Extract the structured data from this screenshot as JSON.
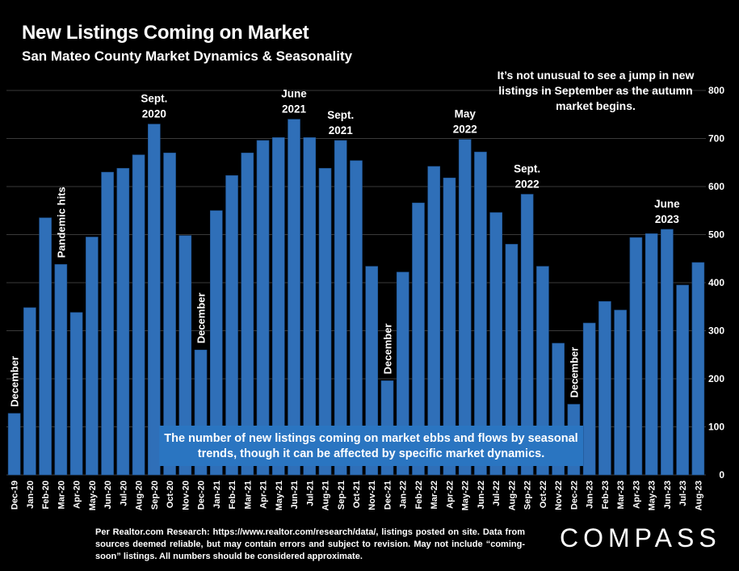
{
  "title": "New Listings Coming on Market",
  "subtitle": "San Mateo County Market Dynamics & Seasonality",
  "callout_top": "It’s not unusual to see a jump in new listings in September as the autumn market begins.",
  "callout_box": "The number of new listings coming on market ebbs and flows by seasonal trends, though it can be affected by specific market dynamics.",
  "footnote": "Per Realtor.com Research: https://www.realtor.com/research/data/, listings posted on site. Data from sources deemed reliable, but may contain errors and subject to revision. May not include “coming-soon” listings. All numbers should be considered approximate.",
  "logo": "COMPASS",
  "colors": {
    "bar": "#2f6fb8",
    "bar_edge": "#1c4f8c",
    "box": "#2a75c1",
    "grid": "#3a3a3a",
    "background": "#000000"
  },
  "chart_data": {
    "type": "bar",
    "title": "New Listings Coming on Market",
    "subtitle": "San Mateo County Market Dynamics & Seasonality",
    "ylim": [
      0,
      800
    ],
    "yticks": [
      0,
      100,
      200,
      300,
      400,
      500,
      600,
      700,
      800
    ],
    "y_axis_side": "right",
    "grid": true,
    "categories": [
      "Dec-19",
      "Jan-20",
      "Feb-20",
      "Mar-20",
      "Apr-20",
      "May-20",
      "Jun-20",
      "Jul-20",
      "Aug-20",
      "Sep-20",
      "Oct-20",
      "Nov-20",
      "Dec-20",
      "Jan-21",
      "Feb-21",
      "Mar-21",
      "Apr-21",
      "May-21",
      "Jun-21",
      "Jul-21",
      "Aug-21",
      "Sep-21",
      "Oct-21",
      "Nov-21",
      "Dec-21",
      "Jan-22",
      "Feb-22",
      "Mar-22",
      "Apr-22",
      "May-22",
      "Jun-22",
      "Jul-22",
      "Aug-22",
      "Sep-22",
      "Oct-22",
      "Nov-22",
      "Dec-22",
      "Jan-23",
      "Feb-23",
      "Mar-23",
      "Apr-23",
      "May-23",
      "Jun-23",
      "Jul-23",
      "Aug-23"
    ],
    "values": [
      128,
      348,
      535,
      438,
      338,
      495,
      630,
      638,
      666,
      730,
      670,
      498,
      260,
      550,
      623,
      670,
      696,
      702,
      740,
      702,
      638,
      696,
      654,
      434,
      196,
      422,
      566,
      642,
      618,
      698,
      672,
      546,
      480,
      584,
      434,
      274,
      147,
      316,
      361,
      343,
      494,
      502,
      511,
      395,
      442
    ],
    "annotations": [
      {
        "index": 0,
        "text": "December",
        "orientation": "vertical"
      },
      {
        "index": 3,
        "text": "Pandemic hits",
        "orientation": "vertical"
      },
      {
        "index": 9,
        "text": "Sept.\n2020",
        "orientation": "horizontal"
      },
      {
        "index": 12,
        "text": "December",
        "orientation": "vertical"
      },
      {
        "index": 18,
        "text": "June\n2021",
        "orientation": "horizontal"
      },
      {
        "index": 21,
        "text": "Sept.\n2021",
        "orientation": "horizontal"
      },
      {
        "index": 24,
        "text": "December",
        "orientation": "vertical"
      },
      {
        "index": 29,
        "text": "May\n2022",
        "orientation": "horizontal"
      },
      {
        "index": 33,
        "text": "Sept.\n2022",
        "orientation": "horizontal"
      },
      {
        "index": 36,
        "text": "December",
        "orientation": "vertical"
      },
      {
        "index": 42,
        "text": "June\n2023",
        "orientation": "horizontal"
      }
    ]
  }
}
